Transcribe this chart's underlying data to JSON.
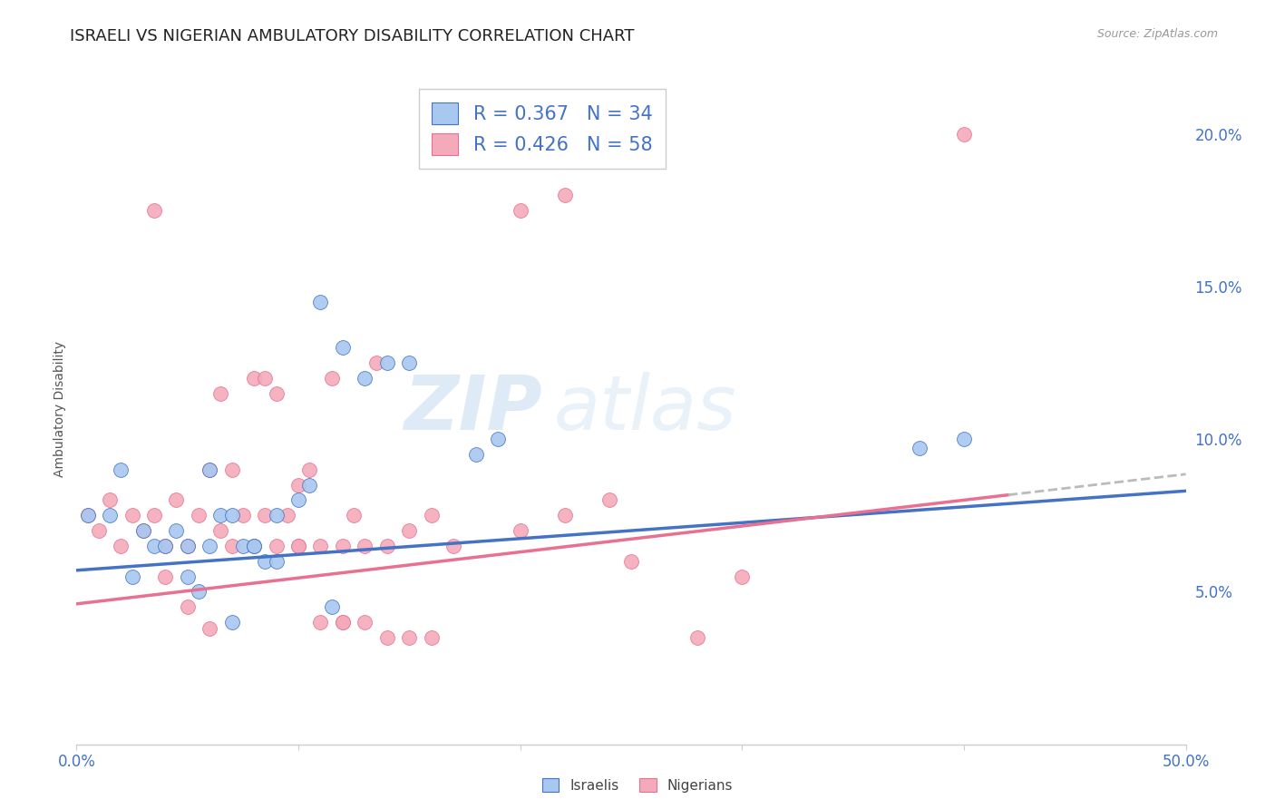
{
  "title": "ISRAELI VS NIGERIAN AMBULATORY DISABILITY CORRELATION CHART",
  "source": "Source: ZipAtlas.com",
  "ylabel": "Ambulatory Disability",
  "xlim": [
    0.0,
    0.5
  ],
  "ylim": [
    0.0,
    0.22
  ],
  "yticks": [
    0.05,
    0.1,
    0.15,
    0.2
  ],
  "ytick_labels": [
    "5.0%",
    "10.0%",
    "15.0%",
    "20.0%"
  ],
  "xticks": [
    0.0,
    0.1,
    0.2,
    0.3,
    0.4,
    0.5
  ],
  "xtick_labels": [
    "0.0%",
    "",
    "",
    "",
    "",
    "50.0%"
  ],
  "watermark_zip": "ZIP",
  "watermark_atlas": "atlas",
  "legend_line1": "R = 0.367   N = 34",
  "legend_line2": "R = 0.426   N = 58",
  "israeli_color": "#A8C8F0",
  "nigerian_color": "#F4AABB",
  "israeli_line_color": "#4472C4",
  "nigerian_line_color": "#E87090",
  "trend_extension_color": "#BBBBBB",
  "background_color": "#FFFFFF",
  "grid_color": "#DDDDDD",
  "title_fontsize": 13,
  "tick_label_color_blue": "#4472C4",
  "israeli_line_slope": 0.052,
  "israeli_line_intercept": 0.057,
  "nigerian_line_slope": 0.085,
  "nigerian_line_intercept": 0.046,
  "israeli_scatter_x": [
    0.005,
    0.015,
    0.02,
    0.025,
    0.03,
    0.035,
    0.04,
    0.045,
    0.05,
    0.055,
    0.06,
    0.065,
    0.07,
    0.075,
    0.08,
    0.085,
    0.09,
    0.1,
    0.105,
    0.11,
    0.115,
    0.12,
    0.13,
    0.14,
    0.15,
    0.18,
    0.19,
    0.38,
    0.4,
    0.05,
    0.06,
    0.07,
    0.08,
    0.09
  ],
  "israeli_scatter_y": [
    0.075,
    0.075,
    0.09,
    0.055,
    0.07,
    0.065,
    0.065,
    0.07,
    0.065,
    0.05,
    0.065,
    0.075,
    0.04,
    0.065,
    0.065,
    0.06,
    0.06,
    0.08,
    0.085,
    0.145,
    0.045,
    0.13,
    0.12,
    0.125,
    0.125,
    0.095,
    0.1,
    0.097,
    0.1,
    0.055,
    0.09,
    0.075,
    0.065,
    0.075
  ],
  "nigerian_scatter_x": [
    0.005,
    0.01,
    0.015,
    0.02,
    0.025,
    0.03,
    0.035,
    0.04,
    0.045,
    0.05,
    0.055,
    0.06,
    0.065,
    0.07,
    0.075,
    0.08,
    0.085,
    0.09,
    0.095,
    0.1,
    0.105,
    0.11,
    0.115,
    0.12,
    0.125,
    0.13,
    0.135,
    0.14,
    0.15,
    0.16,
    0.17,
    0.2,
    0.22,
    0.24,
    0.25,
    0.28,
    0.3,
    0.04,
    0.05,
    0.06,
    0.07,
    0.08,
    0.09,
    0.1,
    0.11,
    0.12,
    0.13,
    0.14,
    0.15,
    0.16,
    0.2,
    0.22,
    0.035,
    0.065,
    0.085,
    0.1,
    0.12,
    0.4
  ],
  "nigerian_scatter_y": [
    0.075,
    0.07,
    0.08,
    0.065,
    0.075,
    0.07,
    0.075,
    0.065,
    0.08,
    0.065,
    0.075,
    0.09,
    0.07,
    0.065,
    0.075,
    0.065,
    0.075,
    0.065,
    0.075,
    0.065,
    0.09,
    0.065,
    0.12,
    0.065,
    0.075,
    0.065,
    0.125,
    0.065,
    0.07,
    0.075,
    0.065,
    0.07,
    0.075,
    0.08,
    0.06,
    0.035,
    0.055,
    0.055,
    0.045,
    0.038,
    0.09,
    0.12,
    0.115,
    0.085,
    0.04,
    0.04,
    0.04,
    0.035,
    0.035,
    0.035,
    0.175,
    0.18,
    0.175,
    0.115,
    0.12,
    0.065,
    0.04,
    0.2
  ]
}
